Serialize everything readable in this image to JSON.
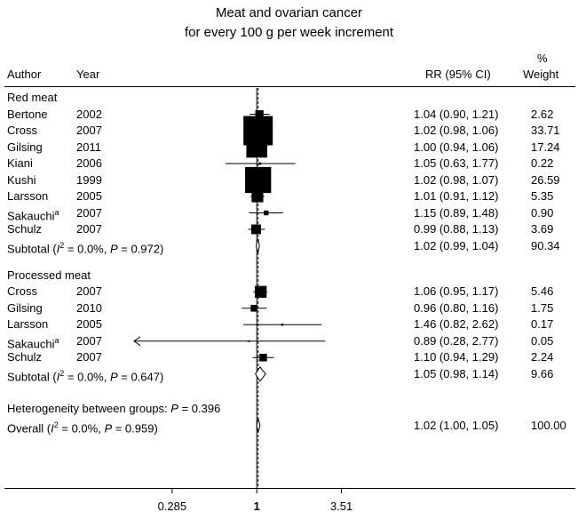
{
  "chart_data": {
    "type": "forest",
    "title_line1": "Meat and ovarian cancer",
    "title_line2": "for every 100 g per week increment",
    "headers": {
      "author": "Author",
      "year": "Year",
      "rr": "RR (95% CI)",
      "weight_pct": "%",
      "weight": "Weight"
    },
    "x_scale": "log",
    "xlim": [
      0.16,
      7.0
    ],
    "x_ticks": [
      {
        "label": "0.285",
        "value": 0.285
      },
      {
        "label": "1",
        "value": 1
      },
      {
        "label": "3.51",
        "value": 3.51
      }
    ],
    "groups": [
      {
        "name": "Red meat",
        "studies": [
          {
            "author": "Bertone",
            "sup": "",
            "year": "2002",
            "rr": 1.04,
            "lo": 0.9,
            "hi": 1.21,
            "ci_text": "1.04 (0.90, 1.21)",
            "weight": "2.62",
            "w": 2.62
          },
          {
            "author": "Cross",
            "sup": "",
            "year": "2007",
            "rr": 1.02,
            "lo": 0.98,
            "hi": 1.06,
            "ci_text": "1.02 (0.98, 1.06)",
            "weight": "33.71",
            "w": 33.71
          },
          {
            "author": "Gilsing",
            "sup": "",
            "year": "2011",
            "rr": 1.0,
            "lo": 0.94,
            "hi": 1.06,
            "ci_text": "1.00 (0.94, 1.06)",
            "weight": "17.24",
            "w": 17.24
          },
          {
            "author": "Kiani",
            "sup": "",
            "year": "2006",
            "rr": 1.05,
            "lo": 0.63,
            "hi": 1.77,
            "ci_text": "1.05 (0.63, 1.77)",
            "weight": "0.22",
            "w": 0.22
          },
          {
            "author": "Kushi",
            "sup": "",
            "year": "1999",
            "rr": 1.02,
            "lo": 0.98,
            "hi": 1.07,
            "ci_text": "1.02 (0.98, 1.07)",
            "weight": "26.59",
            "w": 26.59
          },
          {
            "author": "Larsson",
            "sup": "",
            "year": "2005",
            "rr": 1.01,
            "lo": 0.91,
            "hi": 1.12,
            "ci_text": "1.01 (0.91, 1.12)",
            "weight": "5.35",
            "w": 5.35
          },
          {
            "author": "Sakauchi",
            "sup": "a",
            "year": "2007",
            "rr": 1.15,
            "lo": 0.89,
            "hi": 1.48,
            "ci_text": "1.15 (0.89, 1.48)",
            "weight": "0.90",
            "w": 0.9
          },
          {
            "author": "Schulz",
            "sup": "",
            "year": "2007",
            "rr": 0.99,
            "lo": 0.88,
            "hi": 1.13,
            "ci_text": "0.99 (0.88, 1.13)",
            "weight": "3.69",
            "w": 3.69
          }
        ],
        "subtotal": {
          "prefix": "Subtotal (",
          "i": "I",
          "sq": "2",
          "mid": " = 0.0%, ",
          "p": "P",
          "tail": " = 0.972)",
          "rr": 1.02,
          "lo": 0.99,
          "hi": 1.04,
          "ci_text": "1.02 (0.99, 1.04)",
          "weight": "90.34"
        }
      },
      {
        "name": "Processed meat",
        "studies": [
          {
            "author": "Cross",
            "sup": "",
            "year": "2007",
            "rr": 1.06,
            "lo": 0.95,
            "hi": 1.17,
            "ci_text": "1.06 (0.95, 1.17)",
            "weight": "5.46",
            "w": 5.46
          },
          {
            "author": "Gilsing",
            "sup": "",
            "year": "2010",
            "rr": 0.96,
            "lo": 0.8,
            "hi": 1.16,
            "ci_text": "0.96 (0.80, 1.16)",
            "weight": "1.75",
            "w": 1.75
          },
          {
            "author": "Larsson",
            "sup": "",
            "year": "2005",
            "rr": 1.46,
            "lo": 0.82,
            "hi": 2.62,
            "ci_text": "1.46 (0.82, 2.62)",
            "weight": "0.17",
            "w": 0.17
          },
          {
            "author": "Sakauchi",
            "sup": "a",
            "year": "2007",
            "rr": 0.89,
            "lo": 0.28,
            "hi": 2.77,
            "ci_text": "0.89 (0.28, 2.77)",
            "weight": "0.05",
            "w": 0.05,
            "arrow_left": true
          },
          {
            "author": "Schulz",
            "sup": "",
            "year": "2007",
            "rr": 1.1,
            "lo": 0.94,
            "hi": 1.29,
            "ci_text": "1.10 (0.94, 1.29)",
            "weight": "2.24",
            "w": 2.24
          }
        ],
        "subtotal": {
          "prefix": "Subtotal (",
          "i": "I",
          "sq": "2",
          "mid": " = 0.0%, ",
          "p": "P",
          "tail": " = 0.647)",
          "rr": 1.05,
          "lo": 0.98,
          "hi": 1.14,
          "ci_text": "1.05 (0.98, 1.14)",
          "weight": "9.66"
        }
      }
    ],
    "heterogeneity": {
      "prefix": "Heterogeneity between groups: ",
      "p": "P",
      "tail": " = 0.396"
    },
    "overall": {
      "prefix": "Overall (",
      "i": "I",
      "sq": "2",
      "mid": " = 0.0%, ",
      "p": "P",
      "tail": " = 0.959)",
      "rr": 1.02,
      "lo": 1.0,
      "hi": 1.05,
      "ci_text": "1.02 (1.00, 1.05)",
      "weight": "100.00"
    }
  }
}
